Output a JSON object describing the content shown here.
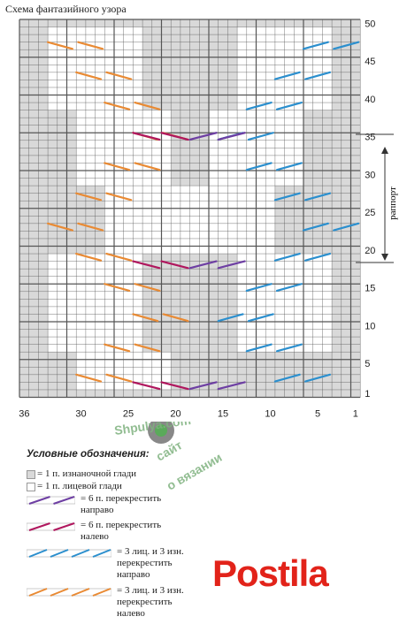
{
  "chart": {
    "title": "Схема фантазийного узора",
    "x_ticks": [
      "36",
      "30",
      "25",
      "20",
      "15",
      "10",
      "5",
      "1"
    ],
    "y_ticks": [
      "50",
      "45",
      "40",
      "35",
      "30",
      "25",
      "20",
      "15",
      "10",
      "5",
      "1"
    ],
    "repeat_label": "раппорт",
    "colors": {
      "gray_cell": "#d9d9d9",
      "white_cell": "#ffffff",
      "grid": "#555555",
      "purple": "#6e3fa3",
      "magenta": "#b0175e",
      "blue": "#2b8fce",
      "orange": "#e98a33"
    }
  },
  "legend": {
    "header": "Условные обозначения:",
    "items": [
      {
        "text": "= 1 п. изнаночной глади",
        "swatch": "gray"
      },
      {
        "text": "= 1 п. лицевой глади",
        "swatch": "white"
      },
      {
        "text": "= 6 п. перекрестить",
        "text2": "направо",
        "swatch": "purple"
      },
      {
        "text": "= 6 п. перекрестить",
        "text2": "налево",
        "swatch": "magenta"
      },
      {
        "text": "= 3 лиц. и 3 изн.",
        "text2": "перекрестить",
        "text3": "направо",
        "swatch": "blue"
      },
      {
        "text": "= 3 лиц. и 3 изн.",
        "text2": "перекрестить",
        "text3": "налево",
        "swatch": "orange"
      }
    ]
  },
  "watermark": {
    "line1": "Shpulya.com",
    "line2": "сайт",
    "line3": "о вязании",
    "brand": "Postila"
  }
}
